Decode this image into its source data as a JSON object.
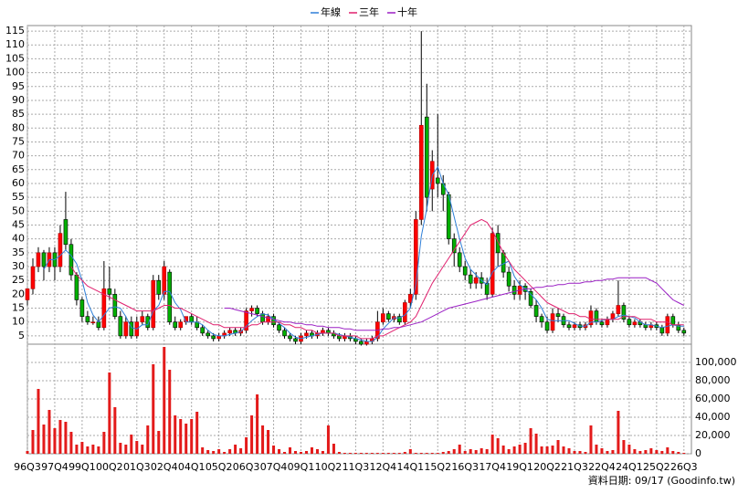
{
  "chart_data": [
    {
      "type": "candlestick",
      "categories": [
        "96Q3",
        null,
        null,
        null,
        null,
        "97Q4",
        null,
        null,
        null,
        null,
        "99Q1",
        null,
        null,
        null,
        null,
        "00Q2",
        null,
        null,
        null,
        null,
        "01Q3",
        null,
        null,
        null,
        null,
        "02Q4",
        null,
        null,
        null,
        null,
        "04Q1",
        null,
        null,
        null,
        null,
        "05Q2",
        null,
        null,
        null,
        null,
        "06Q3",
        null,
        null,
        null,
        null,
        "07Q4",
        null,
        null,
        null,
        null,
        "09Q1",
        null,
        null,
        null,
        null,
        "10Q2",
        null,
        null,
        null,
        null,
        "11Q3",
        null,
        null,
        null,
        null,
        "12Q4",
        null,
        null,
        null,
        null,
        "14Q1",
        null,
        null,
        null,
        null,
        "15Q2",
        null,
        null,
        null,
        null,
        "16Q3",
        null,
        null,
        null,
        null,
        "17Q4",
        null,
        null,
        null,
        null,
        "19Q1",
        null,
        null,
        null,
        null,
        "20Q2",
        null,
        null,
        null,
        null,
        "21Q3",
        null,
        null,
        null,
        null,
        "22Q4",
        null,
        null,
        null,
        null,
        "24Q1",
        null,
        null,
        null,
        null,
        "25Q2",
        null,
        null,
        null,
        null,
        "26Q3"
      ],
      "open": [
        18,
        22,
        30,
        35,
        30,
        35,
        30,
        47,
        38,
        27,
        18,
        12,
        10,
        10,
        8,
        22,
        20,
        12,
        5,
        10,
        5,
        10,
        12,
        8,
        25,
        20,
        28,
        10,
        8,
        10,
        12,
        10,
        8,
        6,
        5,
        4,
        5,
        6,
        7,
        6,
        7,
        14,
        15,
        13,
        10,
        12,
        9,
        7,
        5,
        4,
        3,
        5,
        6,
        5,
        6,
        7,
        6,
        5,
        4,
        5,
        4,
        3,
        2,
        3,
        4,
        10,
        13,
        11,
        12,
        10,
        17,
        20,
        47,
        84,
        58,
        62,
        60,
        56,
        40,
        35,
        30,
        27,
        24,
        26,
        24,
        20,
        42,
        35,
        28,
        23,
        20,
        23,
        21,
        16,
        12,
        10,
        7,
        13,
        12,
        9,
        8,
        9,
        8,
        9,
        14,
        10,
        9,
        11,
        13,
        16,
        11,
        9,
        10,
        9,
        8,
        9,
        8,
        6,
        12,
        9,
        7
      ],
      "high": [
        22,
        33,
        37,
        36,
        37,
        37,
        45,
        57,
        40,
        28,
        19,
        14,
        12,
        12,
        32,
        30,
        22,
        14,
        12,
        12,
        12,
        14,
        13,
        27,
        27,
        32,
        29,
        12,
        11,
        12,
        13,
        12,
        9,
        7,
        6,
        6,
        7,
        8,
        8,
        8,
        15,
        16,
        16,
        14,
        13,
        13,
        10,
        8,
        6,
        5,
        6,
        7,
        7,
        7,
        8,
        8,
        7,
        6,
        6,
        6,
        5,
        4,
        4,
        5,
        14,
        15,
        14,
        13,
        13,
        18,
        22,
        50,
        115,
        96,
        72,
        85,
        63,
        57,
        42,
        37,
        32,
        29,
        28,
        28,
        26,
        44,
        45,
        36,
        30,
        25,
        25,
        24,
        22,
        18,
        13,
        12,
        15,
        15,
        13,
        10,
        10,
        10,
        10,
        16,
        15,
        11,
        12,
        14,
        25,
        17,
        12,
        11,
        11,
        10,
        10,
        10,
        9,
        13,
        13,
        10,
        8
      ],
      "low": [
        16,
        20,
        28,
        25,
        28,
        25,
        28,
        36,
        25,
        16,
        10,
        9,
        9,
        7,
        7,
        18,
        11,
        4,
        4,
        4,
        4,
        9,
        7,
        7,
        18,
        18,
        9,
        7,
        7,
        9,
        9,
        7,
        5,
        4,
        3,
        3,
        4,
        5,
        5,
        5,
        6,
        12,
        12,
        9,
        9,
        8,
        6,
        4,
        3,
        2,
        2,
        4,
        4,
        4,
        5,
        5,
        4,
        3,
        3,
        3,
        2,
        1.5,
        1.5,
        2,
        3,
        9,
        10,
        10,
        9,
        9,
        15,
        18,
        45,
        50,
        50,
        55,
        50,
        38,
        30,
        28,
        25,
        22,
        22,
        22,
        18,
        19,
        30,
        26,
        21,
        18,
        18,
        18,
        15,
        10,
        8,
        6,
        6,
        10,
        8,
        7,
        7,
        7,
        7,
        8,
        9,
        8,
        8,
        10,
        12,
        10,
        8,
        8,
        8,
        7,
        7,
        7,
        5,
        5,
        8,
        6,
        5
      ],
      "close": [
        22,
        30,
        35,
        30,
        35,
        30,
        42,
        38,
        27,
        18,
        12,
        10,
        10,
        8,
        22,
        20,
        12,
        5,
        10,
        5,
        10,
        12,
        8,
        25,
        20,
        30,
        10,
        8,
        10,
        12,
        10,
        8,
        6,
        5,
        4,
        5,
        6,
        7,
        6,
        7,
        14,
        15,
        13,
        10,
        12,
        9,
        7,
        5,
        4,
        3,
        5,
        6,
        5,
        6,
        7,
        6,
        5,
        4,
        5,
        4,
        3,
        2,
        3,
        4,
        10,
        13,
        11,
        12,
        10,
        17,
        20,
        47,
        81,
        55,
        68,
        60,
        56,
        40,
        35,
        30,
        27,
        24,
        26,
        24,
        20,
        42,
        35,
        28,
        23,
        20,
        23,
        21,
        16,
        12,
        10,
        7,
        13,
        12,
        9,
        8,
        9,
        8,
        9,
        14,
        10,
        9,
        11,
        13,
        16,
        11,
        9,
        10,
        9,
        8,
        9,
        8,
        6,
        12,
        9,
        7,
        6
      ],
      "series": [
        {
          "name": "年線",
          "color": "#2f7fd8",
          "values": [
            null,
            null,
            null,
            29,
            32.5,
            32.5,
            34,
            36,
            34,
            31,
            25,
            17,
            12.5,
            10,
            12.5,
            15,
            15.5,
            15,
            12,
            8,
            7.5,
            9,
            9,
            14,
            16,
            21,
            21,
            17,
            14.5,
            10,
            10,
            10,
            9,
            7,
            5.5,
            5,
            5,
            5.5,
            6,
            6.5,
            8.5,
            10.5,
            12,
            13,
            12.5,
            11,
            9.5,
            8,
            6,
            4.5,
            4,
            4.5,
            5,
            5.5,
            6,
            6,
            6,
            5.5,
            5,
            4.5,
            4,
            3.5,
            3,
            3,
            4.5,
            7.5,
            9.5,
            11.5,
            11.5,
            12.5,
            15,
            23.5,
            41,
            51,
            63,
            66,
            60,
            56,
            48,
            40,
            33,
            29,
            27,
            25,
            23.5,
            28,
            30,
            31,
            32,
            26.5,
            23.5,
            22,
            20,
            18,
            15,
            11,
            10.5,
            10.5,
            10.5,
            10.5,
            9.5,
            8.5,
            8.5,
            10,
            10,
            10.5,
            11,
            11,
            12,
            12.5,
            12,
            11.5,
            10,
            9,
            9,
            8.5,
            8,
            8.5,
            9,
            8.5,
            8.5
          ]
        },
        {
          "name": "三年",
          "color": "#e0206e",
          "values": [
            null,
            null,
            null,
            null,
            null,
            null,
            null,
            null,
            30,
            27,
            25,
            23,
            22,
            21,
            20,
            19,
            18,
            17,
            16,
            15,
            14,
            14,
            14,
            14,
            15,
            16,
            16,
            15,
            15,
            14,
            13,
            12,
            11,
            10,
            9,
            9,
            8,
            8,
            8,
            8,
            8,
            9,
            9,
            10,
            10,
            10,
            10,
            9,
            9,
            8,
            8,
            7,
            7,
            6,
            6,
            6,
            6,
            5,
            5,
            5,
            5,
            4,
            4,
            4,
            5,
            5,
            6,
            7,
            8,
            9,
            10,
            12,
            16,
            20,
            24,
            27,
            30,
            33,
            36,
            39,
            42,
            45,
            46,
            47,
            46,
            43,
            39,
            35,
            32,
            29,
            27,
            25,
            23,
            21,
            19,
            17,
            16,
            15,
            14,
            13,
            13,
            12,
            12,
            11,
            11,
            11,
            11,
            11,
            11,
            12,
            12,
            12,
            11,
            11,
            11,
            10,
            10,
            10,
            9,
            9,
            9
          ]
        },
        {
          "name": "十年",
          "color": "#9a1fc4",
          "values": [
            null,
            null,
            null,
            null,
            null,
            null,
            null,
            null,
            null,
            null,
            null,
            null,
            null,
            null,
            null,
            null,
            null,
            null,
            null,
            null,
            null,
            null,
            null,
            null,
            null,
            null,
            null,
            null,
            null,
            null,
            null,
            null,
            null,
            null,
            null,
            null,
            15,
            15,
            14.5,
            14,
            13.5,
            13,
            12.5,
            12,
            11.5,
            11,
            10.5,
            10,
            10,
            9.5,
            9.5,
            9,
            9,
            8.5,
            8.5,
            8,
            8,
            8,
            7.5,
            7.5,
            7,
            7,
            7,
            7,
            7,
            7.5,
            7.5,
            8,
            8,
            8.5,
            9,
            9.5,
            10,
            11,
            12,
            13,
            14,
            15,
            15.5,
            16,
            16.5,
            17,
            17.5,
            18,
            18.5,
            19,
            19.5,
            20,
            20.5,
            21,
            21.5,
            22,
            22,
            22.5,
            22.5,
            23,
            23,
            23.5,
            23.5,
            24,
            24,
            24,
            24.5,
            24.5,
            25,
            25,
            25.5,
            25.5,
            26,
            26,
            26,
            26,
            26,
            26,
            25,
            24,
            22,
            20,
            18,
            17,
            16
          ]
        }
      ],
      "up_color": "#ff0000",
      "down_color": "#00b000",
      "ylim": [
        2,
        117
      ],
      "yticks": [
        5,
        10,
        15,
        20,
        25,
        30,
        35,
        40,
        45,
        50,
        55,
        60,
        65,
        70,
        75,
        80,
        85,
        90,
        95,
        100,
        105,
        110,
        115
      ],
      "grid": true,
      "legend": "top"
    },
    {
      "type": "bar",
      "color": "#e31a1a",
      "values": [
        3000,
        26000,
        71000,
        32000,
        48000,
        28000,
        37000,
        35000,
        24000,
        10000,
        13000,
        8000,
        10000,
        8000,
        24000,
        89000,
        51000,
        12000,
        10000,
        21000,
        14000,
        10000,
        31000,
        98000,
        25000,
        117000,
        92000,
        42000,
        38000,
        33000,
        38000,
        46000,
        7000,
        4000,
        3000,
        5000,
        2000,
        5000,
        10000,
        6000,
        18000,
        42000,
        65000,
        31000,
        26000,
        9000,
        5000,
        2000,
        7000,
        3000,
        2000,
        3000,
        7000,
        5000,
        3000,
        31000,
        11000,
        2000,
        1000,
        1000,
        1000,
        1000,
        1000,
        1000,
        1000,
        1000,
        1000,
        1000,
        1000,
        2000,
        5000,
        1000,
        1000,
        1000,
        1000,
        1000,
        2000,
        3000,
        5000,
        10000,
        3000,
        5000,
        4000,
        6000,
        5000,
        21000,
        17000,
        9000,
        5000,
        8000,
        10000,
        12000,
        28000,
        22000,
        8000,
        8000,
        9000,
        15000,
        8000,
        6000,
        3000,
        3000,
        2000,
        31000,
        10000,
        6000,
        3000,
        4000,
        47000,
        15000,
        10000,
        5000,
        3000,
        4000,
        6000,
        4000,
        3000,
        7000,
        3000,
        2000,
        1000
      ],
      "ylim": [
        0,
        120000
      ],
      "yticks": [
        0,
        {
          "value": 20000,
          "label": "20,000"
        },
        {
          "value": 40000,
          "label": "40,000"
        },
        {
          "value": 60000,
          "label": "60,000"
        },
        {
          "value": 80000,
          "label": "80,000"
        },
        {
          "value": 100000,
          "label": "100,000"
        }
      ],
      "grid": true
    }
  ],
  "footer": "資料日期: 09/17  (Goodinfo.tw)"
}
